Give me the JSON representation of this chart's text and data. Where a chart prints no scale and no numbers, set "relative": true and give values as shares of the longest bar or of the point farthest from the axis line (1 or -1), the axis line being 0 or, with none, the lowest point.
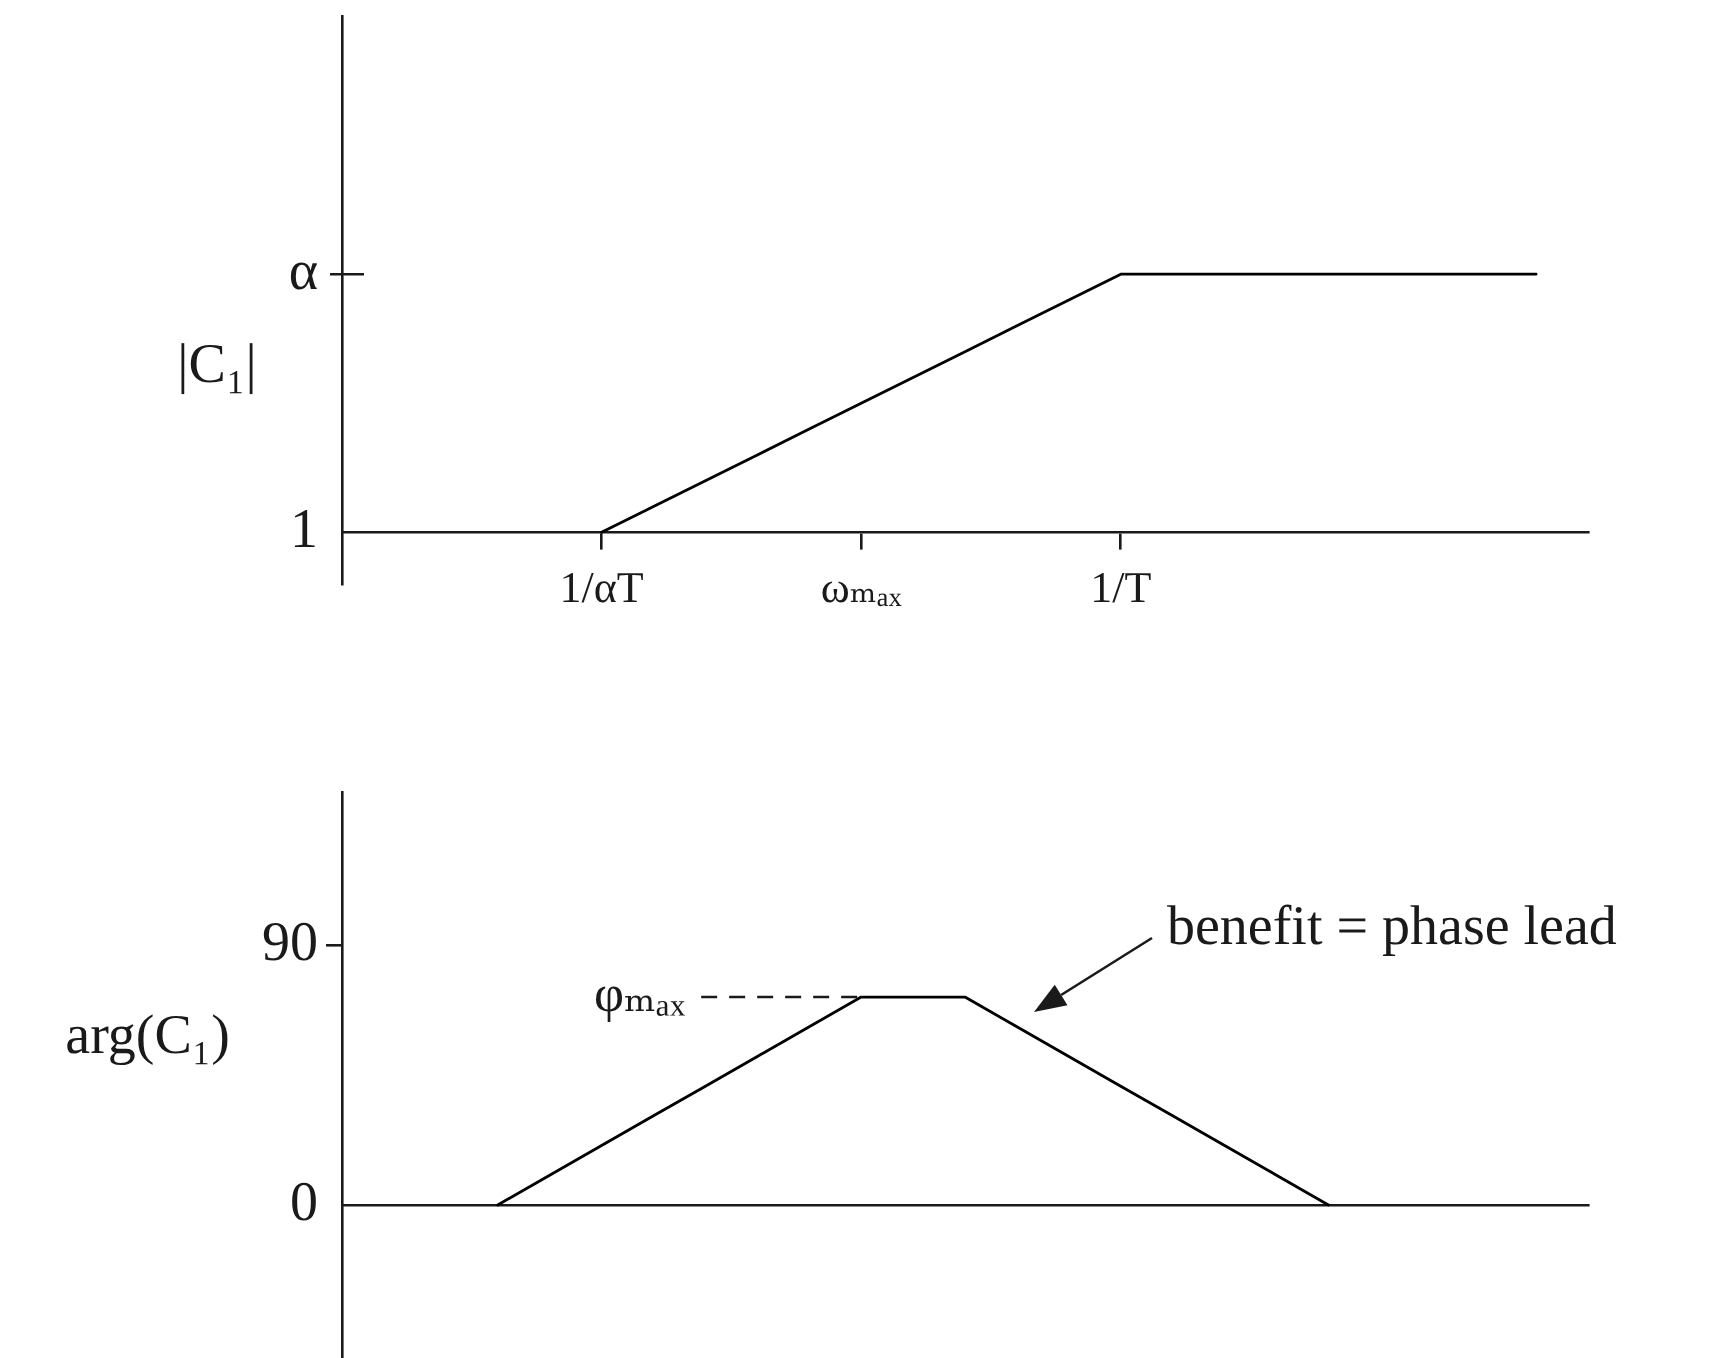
{
  "chart_data": [
    {
      "type": "line",
      "ylabel": "|C₁|",
      "relative": true,
      "categories": [
        null,
        null,
        null,
        null,
        null,
        "1/αT",
        null,
        null,
        null,
        null,
        "ωₘₐₓ",
        null,
        null,
        null,
        null,
        "1/T",
        null,
        null,
        null,
        null,
        null,
        null,
        null,
        null,
        null
      ],
      "values": [
        null,
        null,
        null,
        null,
        null,
        0,
        0.1,
        0.2,
        0.3,
        0.4,
        0.5,
        0.6,
        0.7,
        0.8,
        0.9,
        1,
        1,
        1,
        1,
        1,
        1,
        1,
        1,
        1,
        null
      ],
      "color": "#000000",
      "annotations": [
        "1",
        "α"
      ],
      "legend": false,
      "marker": "none"
    },
    {
      "type": "line",
      "ylabel": "arg(C₁)",
      "categories": [
        null,
        null,
        null,
        null,
        null,
        null,
        null,
        null,
        null,
        null,
        null,
        null,
        null,
        null,
        null,
        null,
        null,
        null,
        null,
        null,
        null,
        null,
        null,
        null,
        null
      ],
      "values": [
        null,
        null,
        null,
        0,
        10.3,
        20.6,
        30.9,
        41.1,
        51.4,
        61.7,
        72,
        72,
        72,
        61.7,
        51.4,
        41.1,
        30.9,
        20.6,
        10.3,
        0,
        null,
        null,
        null,
        null,
        null
      ],
      "color": "#000000",
      "ylim": [
        -53,
        143
      ],
      "yticks": [
        0,
        90
      ],
      "ref_lines": [
        {
          "axis": "y",
          "value": 72,
          "label": "φₘₐₓ",
          "line_style": "dashed"
        }
      ],
      "annotations": [
        "benefit = phase lead"
      ],
      "legend": false,
      "marker": "none"
    }
  ]
}
